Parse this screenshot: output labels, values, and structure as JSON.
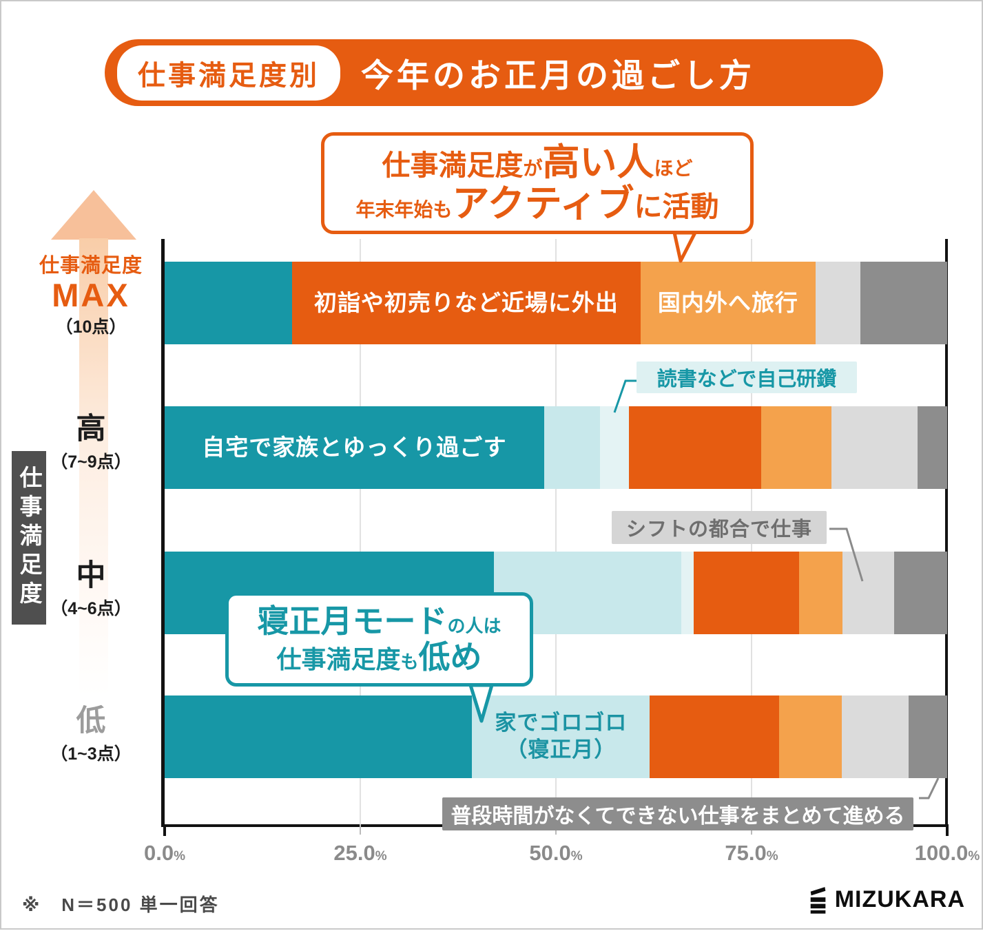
{
  "title": {
    "badge": "仕事満足度別",
    "main": "今年のお正月の過ごし方"
  },
  "callout_top": {
    "line1": [
      {
        "text": "仕事満足度",
        "size": "md"
      },
      {
        "text": "が",
        "size": "sm"
      },
      {
        "text": "高い人",
        "size": "lg"
      },
      {
        "text": "ほど",
        "size": "sm"
      }
    ],
    "line2": [
      {
        "text": "年末年始も",
        "size": "sm"
      },
      {
        "text": "アクティブ",
        "size": "lg"
      },
      {
        "text": "に活動",
        "size": "md"
      }
    ]
  },
  "callout_bottom": {
    "line1": [
      {
        "text": "寝正月モード",
        "size": "lg"
      },
      {
        "text": "の人は",
        "size": "sm"
      }
    ],
    "line2": [
      {
        "text": "仕事満足度",
        "size": "md"
      },
      {
        "text": "も",
        "size": "sm"
      },
      {
        "text": "低め",
        "size": "lg"
      }
    ]
  },
  "y_axis": {
    "banner": "仕事満足度",
    "max": {
      "line1": "仕事満足度",
      "line2": "MAX",
      "line3": "（10点）"
    },
    "high": {
      "line1": "高",
      "line2": "（7~9点）"
    },
    "mid": {
      "line1": "中",
      "line2": "（4~6点）"
    },
    "low": {
      "line1": "低",
      "line2": "（1~3点）"
    }
  },
  "annotations": {
    "reading": "読書などで自己研鑽",
    "shift": "シフトの都合で仕事",
    "work_catchup": "普段時間がなくてできない仕事をまとめて進める"
  },
  "chart_data": {
    "type": "bar",
    "stacked": true,
    "orientation": "horizontal",
    "title": "仕事満足度別 今年のお正月の過ごし方",
    "categories": [
      "仕事満足度MAX（10点）",
      "高（7~9点）",
      "中（4~6点）",
      "低（1~3点）"
    ],
    "series": [
      {
        "name": "自宅で家族とゆっくり過ごす",
        "color": "#1797a6",
        "values": [
          16.3,
          48.5,
          42.1,
          39.3
        ]
      },
      {
        "name": "家でゴロゴロ（寝正月）",
        "color": "#c8e8eb",
        "values": [
          0,
          7.1,
          23.9,
          22.7
        ]
      },
      {
        "name": "読書などで自己研鑽",
        "color": "#e4f3f4",
        "values": [
          0,
          3.7,
          1.6,
          0
        ]
      },
      {
        "name": "初詣や初売りなど近場に外出",
        "color": "#e65c11",
        "values": [
          44.5,
          16.9,
          13.5,
          16.5
        ]
      },
      {
        "name": "国内外へ旅行",
        "color": "#f4a24c",
        "values": [
          22.4,
          9.0,
          5.5,
          8.0
        ]
      },
      {
        "name": "シフトの都合で仕事",
        "color": "#dbdbdb",
        "values": [
          5.7,
          11.0,
          6.6,
          8.6
        ]
      },
      {
        "name": "普段時間がなくてできない仕事をまとめて進める",
        "color": "#8d8d8d",
        "values": [
          11.1,
          3.8,
          6.8,
          4.9
        ]
      }
    ],
    "bar_labels": [
      {
        "row": 0,
        "series": 3,
        "text": "初詣や初売りなど近場に外出",
        "color": "#ffffff"
      },
      {
        "row": 0,
        "series": 4,
        "text": "国内外へ旅行",
        "color": "#ffffff"
      },
      {
        "row": 1,
        "series": 0,
        "text": "自宅で家族とゆっくり過ごす",
        "color": "#ffffff"
      },
      {
        "row": 3,
        "series": 1,
        "text": "家でゴロゴロ\n（寝正月）",
        "color": "#1b93a3",
        "size": 31
      }
    ],
    "x_axis": {
      "tick_labels": [
        "0.0",
        "25.0",
        "50.0",
        "75.0",
        "100.0"
      ],
      "unit": "%",
      "range": [
        0,
        100
      ]
    },
    "grid": true,
    "legend": false
  },
  "colors": {
    "accent_orange": "#e65c11",
    "light_orange": "#f4a24c",
    "teal": "#1797a6",
    "light_cyan": "#c8e8eb",
    "pale_cyan": "#e4f3f4",
    "light_gray": "#dbdbdb",
    "dark_gray": "#8d8d8d",
    "banner_gray": "#4f4f4f"
  },
  "footer": {
    "note": "※　N＝500 単一回答",
    "brand": "MIZUKARA"
  }
}
